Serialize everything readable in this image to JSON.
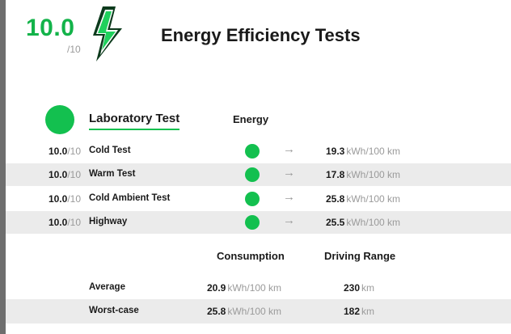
{
  "header": {
    "score": "10.0",
    "score_denominator": "/10",
    "title": "Energy Efficiency Tests",
    "bolt_icon": "lightning-bolt-icon",
    "accent_color": "#13c04f",
    "score_color": "#13b34a"
  },
  "lab": {
    "title": "Laboratory Test",
    "energy_label": "Energy",
    "tests": [
      {
        "score": "10.0",
        "den": "/10",
        "name": "Cold Test",
        "status_color": "#13c04f",
        "value": "19.3",
        "unit": "kWh/100 km"
      },
      {
        "score": "10.0",
        "den": "/10",
        "name": "Warm Test",
        "status_color": "#13c04f",
        "value": "17.8",
        "unit": "kWh/100 km"
      },
      {
        "score": "10.0",
        "den": "/10",
        "name": "Cold Ambient Test",
        "status_color": "#13c04f",
        "value": "25.8",
        "unit": "kWh/100 km"
      },
      {
        "score": "10.0",
        "den": "/10",
        "name": "Highway",
        "status_color": "#13c04f",
        "value": "25.5",
        "unit": "kWh/100 km"
      }
    ]
  },
  "summary": {
    "consumption_label": "Consumption",
    "range_label": "Driving Range",
    "rows": [
      {
        "label": "Average",
        "consumption": "20.9",
        "consumption_unit": "kWh/100 km",
        "range": "230",
        "range_unit": "km"
      },
      {
        "label": "Worst-case",
        "consumption": "25.8",
        "consumption_unit": "kWh/100 km",
        "range": "182",
        "range_unit": "km"
      }
    ]
  }
}
